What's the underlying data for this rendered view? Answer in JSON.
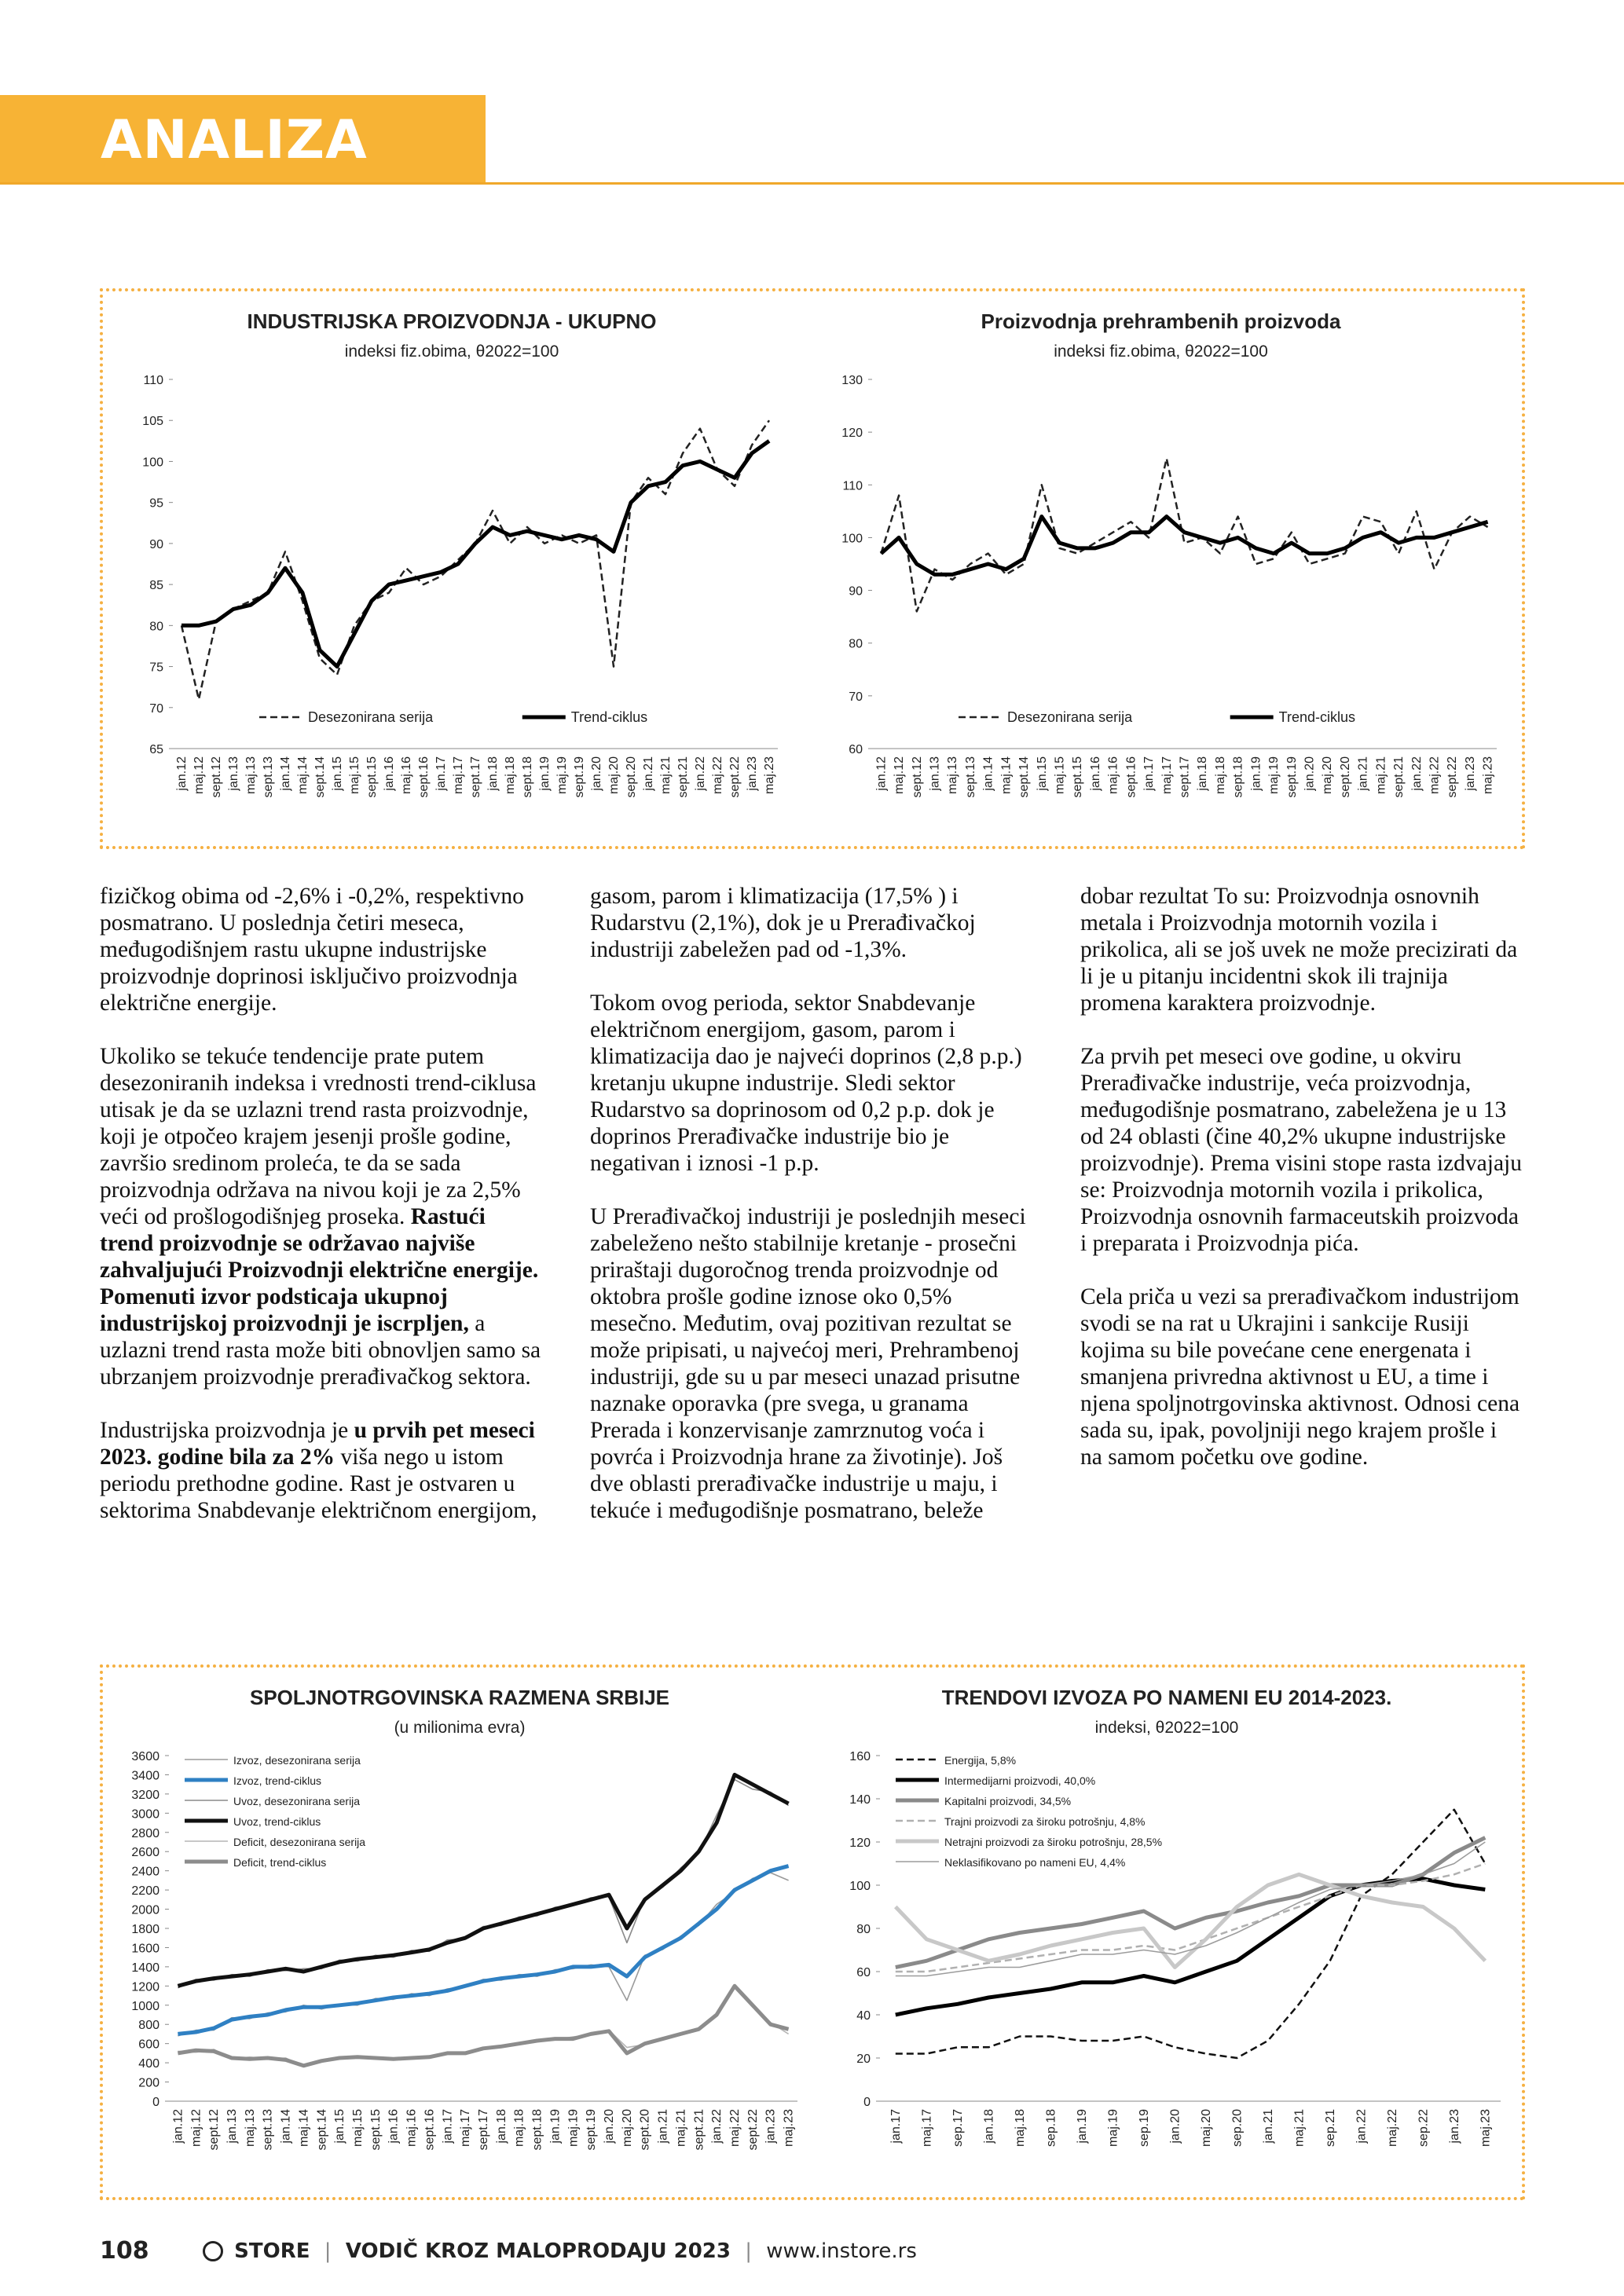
{
  "header": {
    "title": "ANALIZA"
  },
  "chart_data": [
    {
      "type": "line",
      "title": "INDUSTRIJSKA PROIZVODNJA - UKUPNO",
      "subtitle": "indeksi fiz.obima, θ2022=100",
      "legend": "bottom",
      "categories": [
        "jan.12",
        "maj.12",
        "sept.12",
        "jan.13",
        "maj.13",
        "sept.13",
        "jan.14",
        "maj.14",
        "sept.14",
        "jan.15",
        "maj.15",
        "sept.15",
        "jan.16",
        "maj.16",
        "sept.16",
        "jan.17",
        "maj.17",
        "sept.17",
        "jan.18",
        "maj.18",
        "sept.18",
        "jan.19",
        "maj.19",
        "sept.19",
        "jan.20",
        "maj.20",
        "sept.20",
        "jan.21",
        "maj.21",
        "sept.21",
        "jan.22",
        "maj.22",
        "sept.22",
        "jan.23",
        "maj.23"
      ],
      "ylim": [
        65,
        110
      ],
      "yticks": [
        65,
        70,
        75,
        80,
        85,
        90,
        95,
        100,
        105,
        110
      ],
      "series": [
        {
          "name": "Desezonirana serija",
          "color": "#222222",
          "style": "dashed",
          "values": [
            80,
            71,
            80.5,
            82,
            83,
            84,
            89,
            83,
            76,
            74,
            80,
            83,
            84,
            87,
            85,
            86,
            88,
            90,
            94,
            90,
            92,
            90,
            91,
            90,
            91,
            75,
            95,
            98,
            96,
            101,
            104,
            99,
            97,
            102,
            105
          ]
        },
        {
          "name": "Trend-ciklus",
          "color": "#000000",
          "style": "thick",
          "values": [
            80,
            80,
            80.5,
            82,
            82.5,
            84,
            87,
            84,
            77,
            75,
            79,
            83,
            85,
            85.5,
            86,
            86.5,
            87.5,
            90,
            92,
            91,
            91.5,
            91,
            90.5,
            91,
            90.5,
            89,
            95,
            97,
            97.5,
            99.5,
            100,
            99,
            98,
            101,
            102.5
          ]
        }
      ]
    },
    {
      "type": "line",
      "title": "Proizvodnja prehrambenih proizvoda",
      "subtitle": "indeksi fiz.obima, θ2022=100",
      "legend": "bottom",
      "categories": [
        "jan.12",
        "maj.12",
        "sept.12",
        "jan.13",
        "maj.13",
        "sept.13",
        "jan.14",
        "maj.14",
        "sept.14",
        "jan.15",
        "maj.15",
        "sept.15",
        "jan.16",
        "maj.16",
        "sept.16",
        "jan.17",
        "maj.17",
        "sept.17",
        "jan.18",
        "maj.18",
        "sept.18",
        "jan.19",
        "maj.19",
        "sept.19",
        "jan.20",
        "maj.20",
        "sept.20",
        "jan.21",
        "maj.21",
        "sept.21",
        "jan.22",
        "maj.22",
        "sept.22",
        "jan.23",
        "maj.23"
      ],
      "ylim": [
        60,
        130
      ],
      "yticks": [
        60,
        70,
        80,
        90,
        100,
        110,
        120,
        130
      ],
      "series": [
        {
          "name": "Desezonirana serija",
          "color": "#222222",
          "style": "dashed",
          "values": [
            97,
            108,
            86,
            94,
            92,
            95,
            97,
            93,
            95,
            110,
            98,
            97,
            99,
            101,
            103,
            100,
            115,
            99,
            100,
            97,
            104,
            95,
            96,
            101,
            95,
            96,
            97,
            104,
            103,
            97,
            105,
            94,
            101,
            104,
            102
          ]
        },
        {
          "name": "Trend-ciklus",
          "color": "#000000",
          "style": "thick",
          "values": [
            97,
            100,
            95,
            93,
            93,
            94,
            95,
            94,
            96,
            104,
            99,
            98,
            98,
            99,
            101,
            101,
            104,
            101,
            100,
            99,
            100,
            98,
            97,
            99,
            97,
            97,
            98,
            100,
            101,
            99,
            100,
            100,
            101,
            102,
            103
          ]
        }
      ]
    },
    {
      "type": "line",
      "title": "SPOLJNOTRGOVINSKA RAZMENA SRBIJE",
      "subtitle": "(u milionima evra)",
      "legend": "top-left",
      "categories": [
        "jan.12",
        "maj.12",
        "sept.12",
        "jan.13",
        "maj.13",
        "sept.13",
        "jan.14",
        "maj.14",
        "sept.14",
        "jan.15",
        "maj.15",
        "sept.15",
        "jan.16",
        "maj.16",
        "sept.16",
        "jan.17",
        "maj.17",
        "sept.17",
        "jan.18",
        "maj.18",
        "sept.18",
        "jan.19",
        "maj.19",
        "sept.19",
        "jan.20",
        "maj.20",
        "sept.20",
        "jan.21",
        "maj.21",
        "sept.21",
        "jan.22",
        "maj.22",
        "sept.22",
        "jan.23",
        "maj.23"
      ],
      "ylim": [
        0,
        3600
      ],
      "yticks": [
        0,
        200,
        400,
        600,
        800,
        1000,
        1200,
        1400,
        1600,
        1800,
        2000,
        2200,
        2400,
        2600,
        2800,
        3000,
        3200,
        3400,
        3600
      ],
      "series": [
        {
          "name": "Izvoz, desezonirana serija",
          "color": "#9a9a9a",
          "style": "thin",
          "values": [
            680,
            740,
            740,
            870,
            860,
            920,
            930,
            1000,
            960,
            1010,
            1000,
            1070,
            1060,
            1120,
            1100,
            1170,
            1190,
            1270,
            1260,
            1320,
            1300,
            1370,
            1380,
            1420,
            1400,
            1050,
            1520,
            1580,
            1720,
            1830,
            2050,
            2180,
            2320,
            2380,
            2300
          ]
        },
        {
          "name": "Izvoz, trend-ciklus",
          "color": "#2f80c3",
          "style": "thick",
          "values": [
            700,
            720,
            760,
            850,
            880,
            900,
            950,
            980,
            980,
            1000,
            1020,
            1050,
            1080,
            1100,
            1120,
            1150,
            1200,
            1250,
            1280,
            1300,
            1320,
            1350,
            1400,
            1400,
            1420,
            1300,
            1500,
            1600,
            1700,
            1850,
            2000,
            2200,
            2300,
            2400,
            2450
          ]
        },
        {
          "name": "Uvoz, desezonirana serija",
          "color": "#8a8a8a",
          "style": "thin",
          "values": [
            1180,
            1270,
            1260,
            1320,
            1300,
            1370,
            1360,
            1380,
            1380,
            1470,
            1460,
            1520,
            1500,
            1570,
            1560,
            1680,
            1690,
            1820,
            1830,
            1920,
            1930,
            2020,
            2040,
            2120,
            2130,
            1650,
            2120,
            2230,
            2430,
            2580,
            2980,
            3350,
            3250,
            3220,
            3080
          ]
        },
        {
          "name": "Uvoz, trend-ciklus",
          "color": "#111111",
          "style": "thick",
          "values": [
            1200,
            1250,
            1280,
            1300,
            1320,
            1350,
            1380,
            1350,
            1400,
            1450,
            1480,
            1500,
            1520,
            1550,
            1580,
            1650,
            1700,
            1800,
            1850,
            1900,
            1950,
            2000,
            2050,
            2100,
            2150,
            1800,
            2100,
            2250,
            2400,
            2600,
            2900,
            3400,
            3300,
            3200,
            3100
          ]
        },
        {
          "name": "Deficit, desezonirana serija",
          "color": "#b5b5b5",
          "style": "thin",
          "values": [
            520,
            510,
            540,
            440,
            460,
            440,
            450,
            360,
            430,
            440,
            470,
            440,
            450,
            440,
            470,
            490,
            510,
            540,
            580,
            590,
            640,
            640,
            670,
            690,
            740,
            560,
            590,
            660,
            690,
            760,
            910,
            1180,
            980,
            820,
            700
          ]
        },
        {
          "name": "Deficit, trend-ciklus",
          "color": "#8c8c8c",
          "style": "thick",
          "values": [
            500,
            530,
            520,
            450,
            440,
            450,
            430,
            370,
            420,
            450,
            460,
            450,
            440,
            450,
            460,
            500,
            500,
            550,
            570,
            600,
            630,
            650,
            650,
            700,
            730,
            500,
            600,
            650,
            700,
            750,
            900,
            1200,
            1000,
            800,
            750
          ]
        }
      ]
    },
    {
      "type": "line",
      "title": "TRENDOVI IZVOZA PO NAMENI EU 2014-2023.",
      "subtitle": "indeksi, θ2022=100",
      "legend": "top-left",
      "categories": [
        "jan.17",
        "maj.17",
        "sep.17",
        "jan.18",
        "maj.18",
        "sep.18",
        "jan.19",
        "maj.19",
        "sep.19",
        "jan.20",
        "maj.20",
        "sep.20",
        "jan.21",
        "maj.21",
        "sep.21",
        "jan.22",
        "maj.22",
        "sep.22",
        "jan.23",
        "maj.23"
      ],
      "ylim": [
        0,
        160
      ],
      "yticks": [
        0,
        20,
        40,
        60,
        80,
        100,
        120,
        140,
        160
      ],
      "series": [
        {
          "name": "Energija, 5,8%",
          "color": "#111111",
          "style": "dashed",
          "values": [
            22,
            22,
            25,
            25,
            30,
            30,
            28,
            28,
            30,
            25,
            22,
            20,
            28,
            45,
            65,
            95,
            105,
            120,
            135,
            110
          ]
        },
        {
          "name": "Intermedijarni proizvodi, 40,0%",
          "color": "#000000",
          "style": "thick",
          "values": [
            40,
            43,
            45,
            48,
            50,
            52,
            55,
            55,
            58,
            55,
            60,
            65,
            75,
            85,
            95,
            100,
            102,
            103,
            100,
            98
          ]
        },
        {
          "name": "Kapitalni proizvodi, 34,5%",
          "color": "#8a8a8a",
          "style": "thick",
          "values": [
            62,
            65,
            70,
            75,
            78,
            80,
            82,
            85,
            88,
            80,
            85,
            88,
            92,
            95,
            100,
            100,
            100,
            105,
            115,
            122
          ]
        },
        {
          "name": "Trajni proizvodi za široku potrošnju, 4,8%",
          "color": "#b0b0b0",
          "style": "dashed",
          "values": [
            60,
            60,
            62,
            64,
            66,
            68,
            70,
            70,
            72,
            70,
            75,
            80,
            85,
            90,
            95,
            100,
            100,
            102,
            105,
            110
          ]
        },
        {
          "name": "Netrajni proizvodi za široku potrošnju, 28,5%",
          "color": "#c8c8c8",
          "style": "thick",
          "values": [
            90,
            75,
            70,
            65,
            68,
            72,
            75,
            78,
            80,
            62,
            75,
            90,
            100,
            105,
            100,
            95,
            92,
            90,
            80,
            65
          ]
        },
        {
          "name": "Neklasifikovano po nameni EU, 4,4%",
          "color": "#9c9c9c",
          "style": "thin",
          "values": [
            58,
            58,
            60,
            62,
            62,
            65,
            68,
            68,
            70,
            68,
            72,
            78,
            85,
            92,
            98,
            100,
            102,
            105,
            110,
            120
          ]
        }
      ]
    }
  ],
  "article": {
    "paragraphs": [
      [
        "fizičkog obima od -2,6% i -0,2%, respektivno posmatrano. U poslednja četiri meseca, međugodišnjem rastu ukupne industrijske proizvodnje doprinosi isključivo proizvodnja električne energije."
      ],
      [
        "Ukoliko se tekuće tendencije prate putem desezoniranih indeksa i vrednosti trend-ciklusa utisak je da se uzlazni trend rasta proizvodnje, koji je otpočeo krajem jesenji prošle godine, završio sredinom proleća, te da se sada proizvodnja održava na nivou koji je za 2,5% veći od prošlogodišnjeg proseka. ",
        "Rastući trend proizvodnje se održavao najviše zahvaljujući Proizvodnji električne energije. Pomenuti izvor podsticaja ukupnoj industrijskoj proizvodnji je iscrpljen,",
        " a uzlazni trend rasta može biti obnovljen samo sa ubrzanjem proizvodnje prerađivačkog sektora."
      ],
      [
        "Industrijska proizvodnja je ",
        "u prvih pet meseci 2023. godine bila za 2%",
        " viša nego u istom periodu prethodne godine. Rast je ostvaren u sektorima Snabdevanje električnom energijom, gasom, parom i klimatizacija (17,5% ) i Rudarstvu (2,1%), dok je u Prerađivačkoj industriji zabeležen pad od -1,3%."
      ],
      [
        "Tokom ovog perioda, sektor Snabdevanje električnom energijom, gasom, parom i klimatizacija dao je najveći doprinos (2,8 p.p.) kretanju ukupne industrije. Sledi sektor Rudarstvo sa doprinosom od 0,2 p.p. dok je doprinos Prerađivačke industrije bio je negativan i iznosi -1 p.p."
      ],
      [
        "U Prerađivačkoj industriji je poslednjih meseci zabeleženo nešto stabilnije kretanje - prosečni priraštaji dugoročnog trenda proizvodnje od oktobra prošle godine iznose oko 0,5% mesečno. Međutim, ovaj pozitivan rezultat se može pripisati, u najvećoj meri, Prehrambenoj industriji, gde su u par meseci unazad prisutne naznake oporavka (pre svega, u granama Prerada i konzervisanje zamrznutog voća i povrća i Proizvodnja hrane za životinje). Još dve oblasti prerađivačke industrije u maju, i tekuće i međugodišnje posmatrano, beleže dobar rezultat To su: Proizvodnja osnovnih metala i Proizvodnja motornih vozila i prikolica, ali se još uvek ne može precizirati da li je u pitanju incidentni skok ili trajnija promena karaktera proizvodnje."
      ],
      [
        "Za prvih pet meseci ove godine, u okviru Prerađivačke industrije, veća proizvodnja, međugodišnje posmatrano, zabeležena je u 13 od 24 oblasti (čine 40,2% ukupne industrijske proizvodnje). Prema visini stope rasta izdvajaju se: Proizvodnja motornih vozila i prikolica, Proizvodnja osnovnih farmaceutskih proizvoda i preparata i Proizvodnja pića."
      ],
      [
        "Cela priča u vezi sa prerađivačkom industrijom svodi se na rat u Ukrajini i sankcije Rusiji kojima su bile povećane cene energenata i smanjena privredna aktivnost u EU, a time i njena spoljnotrgovinska aktivnost. Odnosi cena sada su, ipak, povoljniji nego krajem prošle i na samom početku ove godine."
      ]
    ]
  },
  "footer": {
    "page": "108",
    "brand": "STORE",
    "publication": "VODIČ KROZ MALOPRODAJU 2023",
    "url": "www.instore.rs"
  }
}
